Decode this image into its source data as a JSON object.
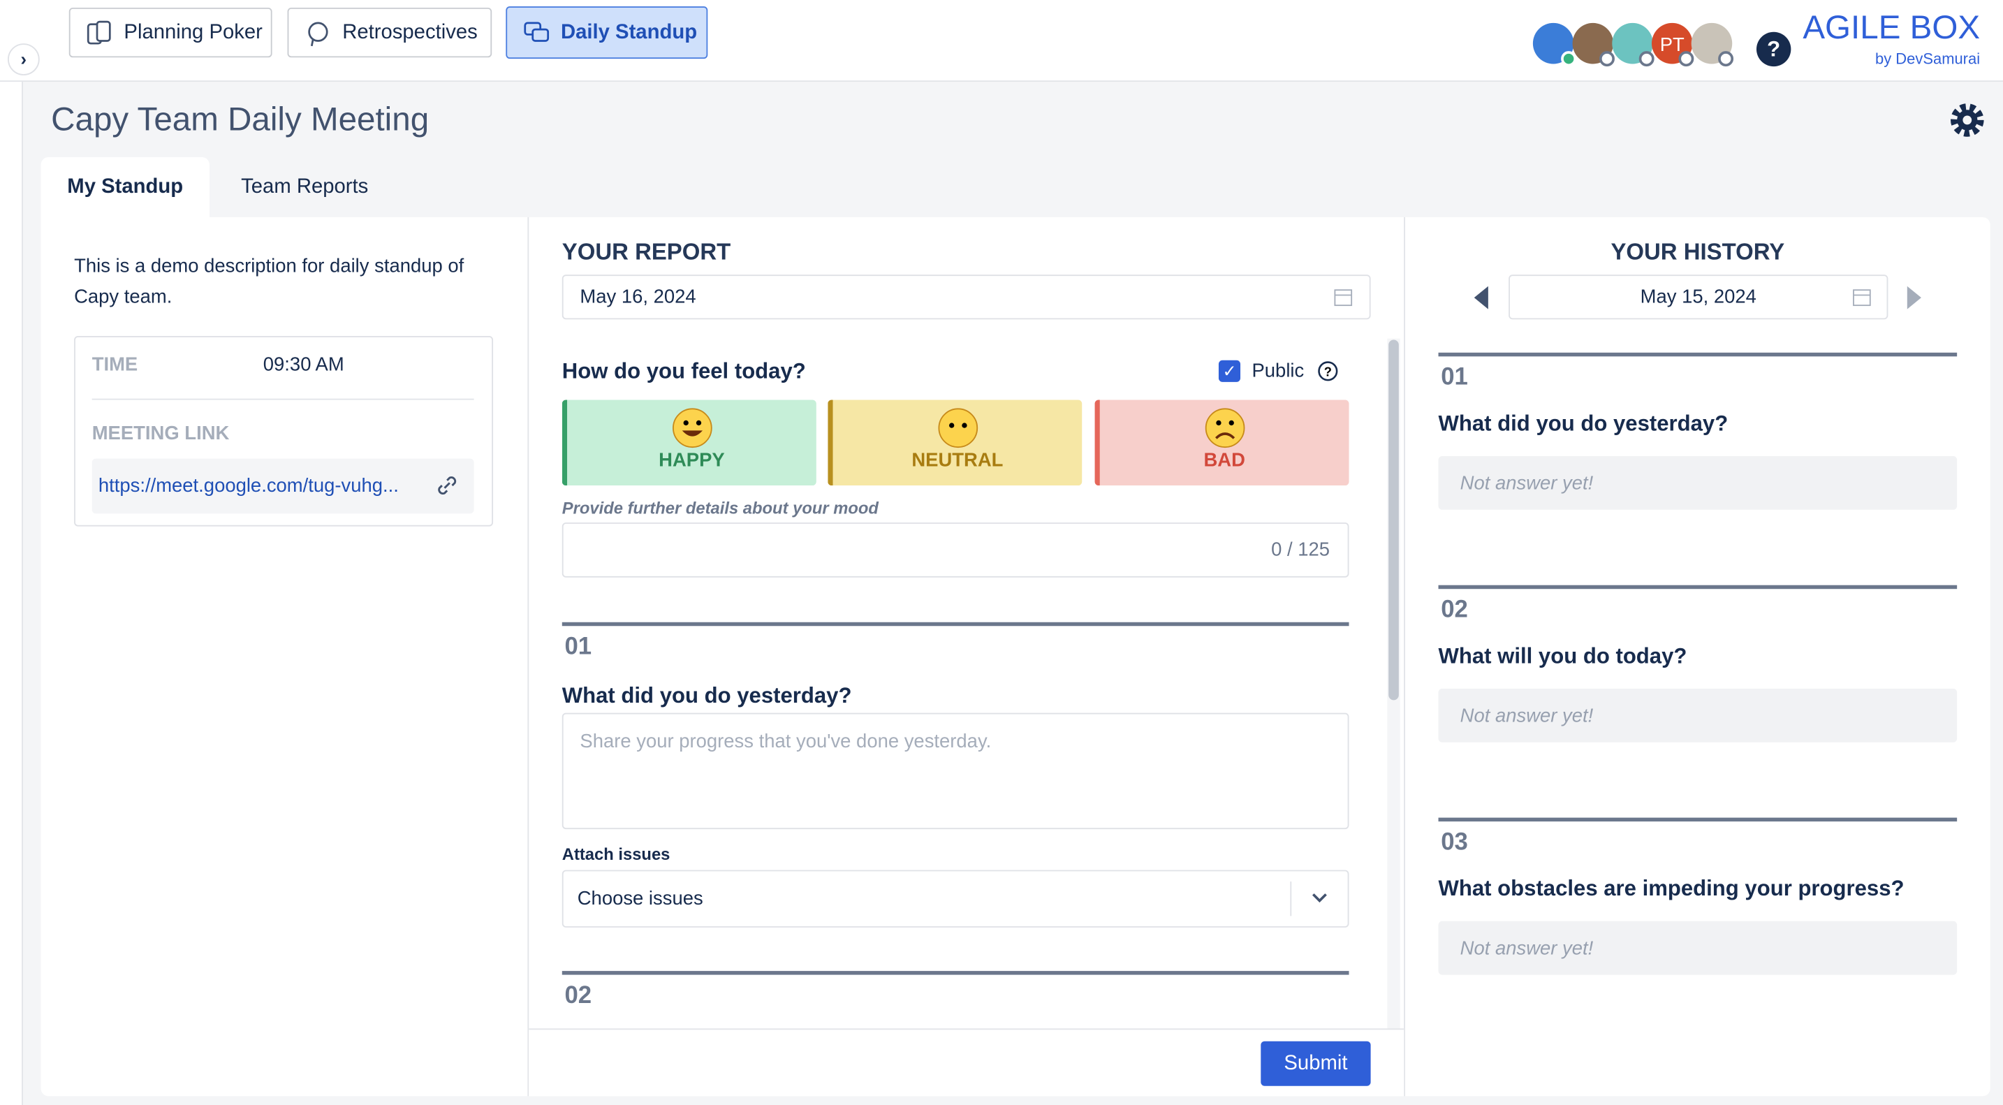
{
  "nav": {
    "tabs": [
      "Planning Poker",
      "Retrospectives",
      "Daily Standup"
    ],
    "avatar_initials": "PT",
    "brand": "AGILE BOX",
    "brand_sub": "by DevSamurai"
  },
  "header": {
    "title": "Capy Team Daily Meeting"
  },
  "tabs": [
    "My Standup",
    "Team Reports"
  ],
  "info": {
    "description": "This is a demo description for daily standup of Capy team.",
    "time_label": "TIME",
    "time": "09:30 AM",
    "link_label": "MEETING LINK",
    "link": "https://meet.google.com/tug-vuhg..."
  },
  "report": {
    "heading": "YOUR REPORT",
    "date": "May 16, 2024",
    "mood_question": "How do you feel today?",
    "public": "Public",
    "moods": [
      "HAPPY",
      "NEUTRAL",
      "BAD"
    ],
    "mood_details": "Provide further details about your mood",
    "counter": "0 / 125",
    "questions": [
      {
        "number": "01",
        "question": "What did you do yesterday?",
        "placeholder": "Share your progress that you've done yesterday.",
        "attach_label": "Attach issues",
        "attach_placeholder": "Choose issues"
      },
      {
        "number": "02"
      }
    ],
    "submit": "Submit"
  },
  "history": {
    "heading": "YOUR HISTORY",
    "date": "May 15, 2024",
    "items": [
      {
        "number": "01",
        "question": "What did you do yesterday?",
        "answer": "Not answer yet!"
      },
      {
        "number": "02",
        "question": "What will you do today?",
        "answer": "Not answer yet!"
      },
      {
        "number": "03",
        "question": "What obstacles are impeding your progress?",
        "answer": "Not answer yet!"
      }
    ]
  }
}
